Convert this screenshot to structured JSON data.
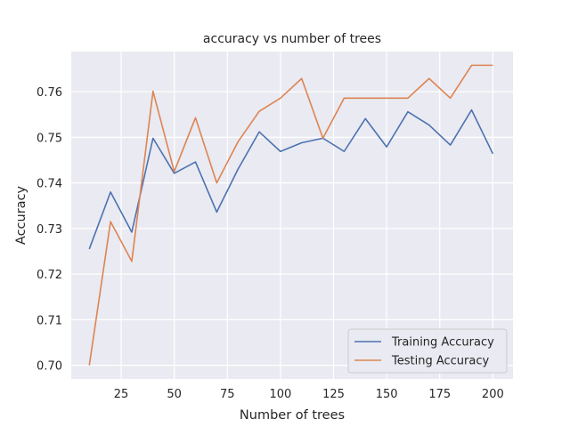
{
  "chart_data": {
    "type": "line",
    "title": "accuracy vs number of trees",
    "xlabel": "Number of trees",
    "ylabel": "Accuracy",
    "xlim": [
      1.5,
      209.5
    ],
    "ylim": [
      0.697,
      0.7688
    ],
    "xticks": [
      25,
      50,
      75,
      100,
      125,
      150,
      175,
      200
    ],
    "yticks": [
      0.7,
      0.71,
      0.72,
      0.73,
      0.74,
      0.75,
      0.76
    ],
    "xtick_labels": [
      "25",
      "50",
      "75",
      "100",
      "125",
      "150",
      "175",
      "200"
    ],
    "ytick_labels": [
      "0.70",
      "0.71",
      "0.72",
      "0.73",
      "0.74",
      "0.75",
      "0.76"
    ],
    "grid": true,
    "legend_position": "lower-right",
    "x": [
      10,
      20,
      30,
      40,
      50,
      60,
      70,
      80,
      90,
      100,
      110,
      120,
      130,
      140,
      150,
      160,
      170,
      180,
      190,
      200
    ],
    "series": [
      {
        "name": "Training Accuracy",
        "color": "#4c72b0",
        "values": [
          0.7255,
          0.738,
          0.7292,
          0.7498,
          0.7421,
          0.7446,
          0.7336,
          0.743,
          0.7512,
          0.7469,
          0.7488,
          0.7498,
          0.7469,
          0.7541,
          0.7479,
          0.7556,
          0.7527,
          0.7483,
          0.756,
          0.7464
        ]
      },
      {
        "name": "Testing Accuracy",
        "color": "#dd8452",
        "values": [
          0.7,
          0.7315,
          0.7228,
          0.7601,
          0.7425,
          0.7543,
          0.74,
          0.749,
          0.7557,
          0.7586,
          0.7629,
          0.7498,
          0.7586,
          0.7586,
          0.7586,
          0.7586,
          0.7629,
          0.7586,
          0.7658,
          0.7658
        ]
      }
    ]
  }
}
